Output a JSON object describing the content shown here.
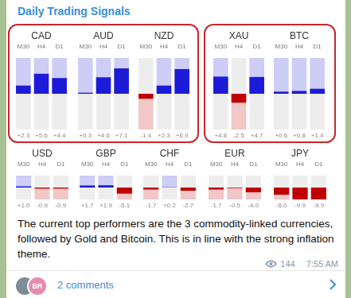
{
  "header": {
    "title": "Daily Trading Signals"
  },
  "chart_data": [
    {
      "type": "bar",
      "title": "CAD",
      "categories": [
        "M30",
        "H4",
        "D1"
      ],
      "values": [
        2.3,
        5.6,
        4.4
      ],
      "value_labels": [
        "+2.3",
        "+5.6",
        "+4.4"
      ],
      "colors": [
        "#1c1cd8",
        "#1c1cd8",
        "#1c1cd8"
      ],
      "ylim": [
        -10,
        10
      ],
      "grid": false,
      "tick_labels": "x",
      "data_labels": true
    },
    {
      "type": "bar",
      "title": "AUD",
      "categories": [
        "M30",
        "H4",
        "D1"
      ],
      "values": [
        0.3,
        4.6,
        7.1
      ],
      "value_labels": [
        "+0.3",
        "+4.6",
        "+7.1"
      ],
      "colors": [
        "#1c1cd8",
        "#1c1cd8",
        "#1c1cd8"
      ],
      "ylim": [
        -10,
        10
      ],
      "grid": false,
      "tick_labels": "x",
      "data_labels": true
    },
    {
      "type": "bar",
      "title": "NZD",
      "categories": [
        "M30",
        "H4",
        "D1"
      ],
      "values": [
        -1.4,
        2.3,
        6.9
      ],
      "value_labels": [
        "-1.4",
        "+2.3",
        "+6.9"
      ],
      "colors": [
        "#c00000",
        "#1c1cd8",
        "#1c1cd8"
      ],
      "ylim": [
        -10,
        10
      ],
      "grid": false,
      "tick_labels": "x",
      "data_labels": true
    },
    {
      "type": "bar",
      "title": "XAU",
      "categories": [
        "M30",
        "H4",
        "D1"
      ],
      "values": [
        4.8,
        -2.5,
        4.7
      ],
      "value_labels": [
        "+4.8",
        "-2.5",
        "+4.7"
      ],
      "colors": [
        "#1c1cd8",
        "#c00000",
        "#1c1cd8"
      ],
      "ylim": [
        -10,
        10
      ],
      "grid": false,
      "tick_labels": "x",
      "data_labels": true
    },
    {
      "type": "bar",
      "title": "BTC",
      "categories": [
        "M30",
        "H4",
        "D1"
      ],
      "values": [
        0.6,
        0.8,
        1.4
      ],
      "value_labels": [
        "+0.6",
        "+0.8",
        "+1.4"
      ],
      "colors": [
        "#1c1cd8",
        "#1c1cd8",
        "#1c1cd8"
      ],
      "ylim": [
        -10,
        10
      ],
      "grid": false,
      "tick_labels": "x",
      "data_labels": true
    },
    {
      "type": "bar",
      "title": "USD",
      "categories": [
        "M30",
        "H4",
        "D1"
      ],
      "values": [
        1.0,
        -0.9,
        -0.9
      ],
      "value_labels": [
        "+1.0",
        "-0.9",
        "-0.9"
      ],
      "colors": [
        "#1c1cd8",
        "#c00000",
        "#c00000"
      ],
      "ylim": [
        -10,
        10
      ],
      "grid": false,
      "tick_labels": "x",
      "data_labels": true
    },
    {
      "type": "bar",
      "title": "GBP",
      "categories": [
        "M30",
        "H4",
        "D1"
      ],
      "values": [
        1.7,
        1.9,
        -5.1
      ],
      "value_labels": [
        "+1.7",
        "+1.9",
        "-5.1"
      ],
      "colors": [
        "#1c1cd8",
        "#1c1cd8",
        "#c00000"
      ],
      "ylim": [
        -10,
        10
      ],
      "grid": false,
      "tick_labels": "x",
      "data_labels": true
    },
    {
      "type": "bar",
      "title": "CHF",
      "categories": [
        "M30",
        "H4",
        "D1"
      ],
      "values": [
        -1.7,
        0.2,
        -2.7
      ],
      "value_labels": [
        "-1.7",
        "+0.2",
        "-2.7"
      ],
      "colors": [
        "#c00000",
        "#1c1cd8",
        "#c00000"
      ],
      "ylim": [
        -10,
        10
      ],
      "grid": false,
      "tick_labels": "x",
      "data_labels": true
    },
    {
      "type": "bar",
      "title": "EUR",
      "categories": [
        "M30",
        "H4",
        "D1"
      ],
      "values": [
        -1.7,
        -0.5,
        -4.0
      ],
      "value_labels": [
        "-1.7",
        "-0.5",
        "-4.0"
      ],
      "colors": [
        "#c00000",
        "#c00000",
        "#c00000"
      ],
      "ylim": [
        -10,
        10
      ],
      "grid": false,
      "tick_labels": "x",
      "data_labels": true
    },
    {
      "type": "bar",
      "title": "JPY",
      "categories": [
        "M30",
        "H4",
        "D1"
      ],
      "values": [
        -6.0,
        -9.9,
        -9.9
      ],
      "value_labels": [
        "-6.0",
        "-9.9",
        "-9.9"
      ],
      "colors": [
        "#c00000",
        "#c00000",
        "#c00000"
      ],
      "ylim": [
        -10,
        10
      ],
      "grid": false,
      "tick_labels": "x",
      "data_labels": true
    }
  ],
  "message": {
    "text": "The current top performers are the 3 commodity-linked currencies, followed by Gold and Bitcoin. This is in line with the strong inflation theme.",
    "views": 144,
    "time": "7:55 AM"
  },
  "comments": {
    "avatar": "BR",
    "label": "2 comments"
  }
}
